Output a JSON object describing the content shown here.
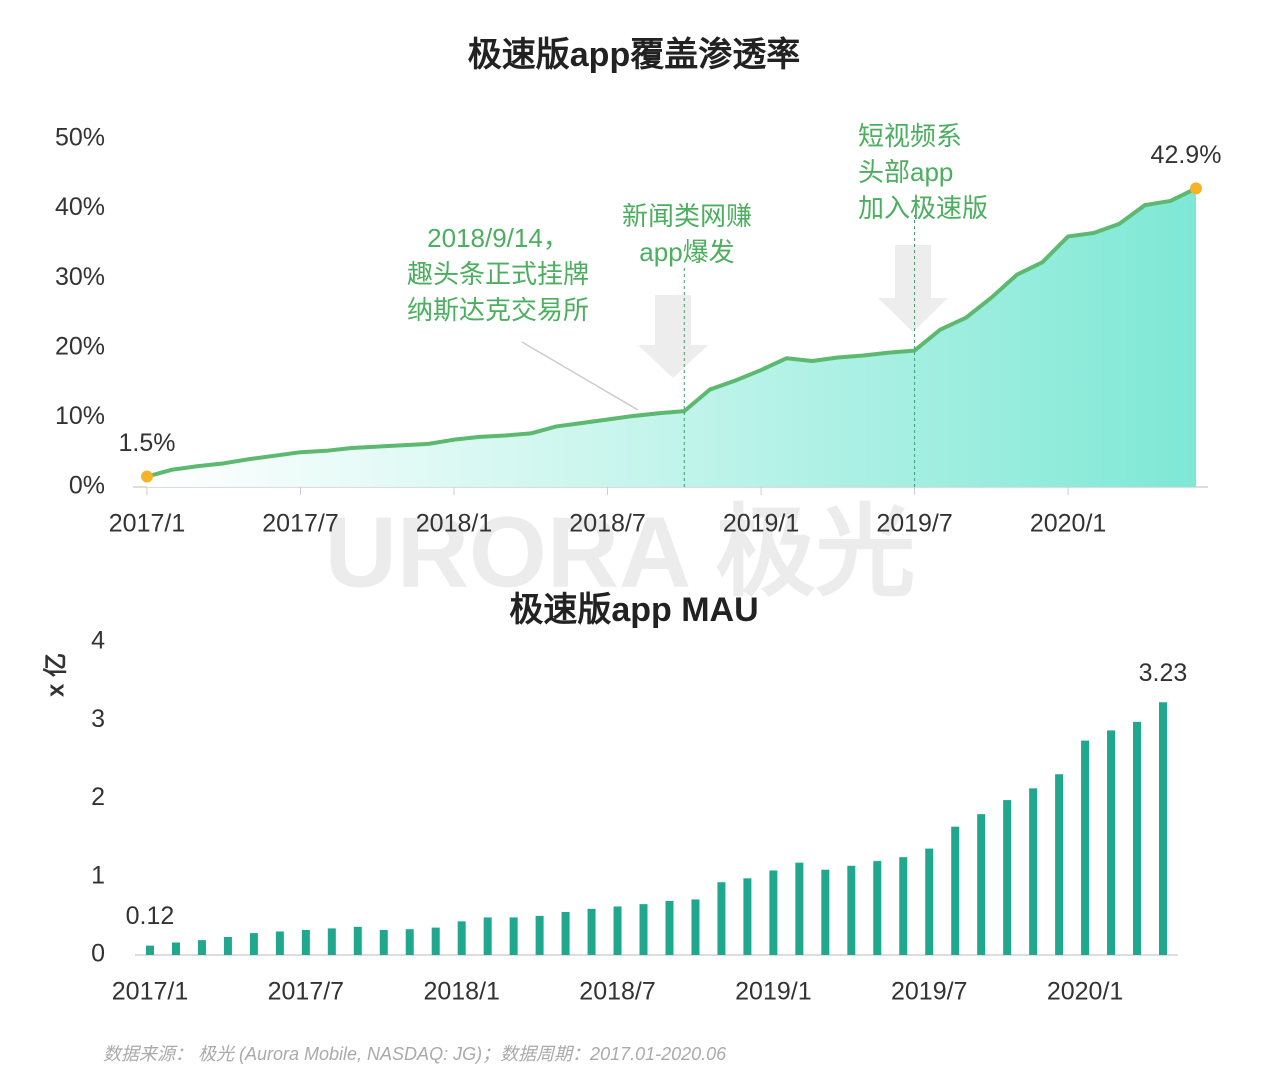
{
  "chart_data": [
    {
      "type": "area",
      "title": "极速版app覆盖渗透率",
      "categories": [
        "2017/1",
        null,
        null,
        null,
        null,
        null,
        "2017/7",
        null,
        null,
        null,
        null,
        null,
        "2018/1",
        null,
        null,
        null,
        null,
        null,
        "2018/7",
        null,
        null,
        null,
        null,
        null,
        "2019/1",
        null,
        null,
        null,
        null,
        null,
        "2019/7",
        null,
        null,
        null,
        null,
        null,
        "2020/1",
        null,
        null,
        null,
        null,
        null
      ],
      "values": [
        1.5,
        2.5,
        3.0,
        3.4,
        4.0,
        4.5,
        5.0,
        5.2,
        5.6,
        5.8,
        6.0,
        6.2,
        6.8,
        7.2,
        7.4,
        7.7,
        8.7,
        9.2,
        9.7,
        10.2,
        10.6,
        10.9,
        14.0,
        15.3,
        16.8,
        18.5,
        18.1,
        18.6,
        18.9,
        19.3,
        19.6,
        22.6,
        24.3,
        27.2,
        30.5,
        32.3,
        36.0,
        36.5,
        37.8,
        40.5,
        41.1,
        42.9
      ],
      "value_labels": [
        "1.5%",
        null,
        null,
        null,
        null,
        null,
        null,
        null,
        null,
        null,
        null,
        null,
        null,
        null,
        null,
        null,
        null,
        null,
        null,
        null,
        null,
        null,
        null,
        null,
        null,
        null,
        null,
        null,
        null,
        null,
        null,
        null,
        null,
        null,
        null,
        null,
        null,
        null,
        null,
        null,
        null,
        "42.9%"
      ],
      "color": "#5cb96f",
      "area_color": "#7ee8d5",
      "marker_color": "#f5b32a",
      "ylim": [
        0,
        50
      ],
      "yticks": [
        {
          "value": 0,
          "label": "0%"
        },
        {
          "value": 10,
          "label": "10%"
        },
        {
          "value": 20,
          "label": "20%"
        },
        {
          "value": 30,
          "label": "30%"
        },
        {
          "value": 40,
          "label": "40%"
        },
        {
          "value": 50,
          "label": "50%"
        }
      ],
      "annotations": [
        {
          "lines": [
            "2018/9/14，",
            "趣头条正式挂牌",
            "纳斯达克交易所"
          ]
        },
        {
          "lines": [
            "新闻类网赚",
            "app爆发"
          ]
        },
        {
          "lines": [
            "短视频系",
            "头部app",
            "加入极速版"
          ]
        }
      ]
    },
    {
      "type": "bar",
      "title": "极速版app MAU",
      "ylabel": "x 亿",
      "categories": [
        "2017/1",
        null,
        null,
        null,
        null,
        null,
        "2017/7",
        null,
        null,
        null,
        null,
        null,
        "2018/1",
        null,
        null,
        null,
        null,
        null,
        "2018/7",
        null,
        null,
        null,
        null,
        null,
        "2019/1",
        null,
        null,
        null,
        null,
        null,
        "2019/7",
        null,
        null,
        null,
        null,
        null,
        "2020/1",
        null,
        null,
        null
      ],
      "values": [
        0.12,
        0.16,
        0.19,
        0.23,
        0.28,
        0.3,
        0.32,
        0.34,
        0.36,
        0.32,
        0.33,
        0.35,
        0.43,
        0.48,
        0.48,
        0.5,
        0.55,
        0.59,
        0.62,
        0.65,
        0.69,
        0.71,
        0.93,
        0.98,
        1.08,
        1.18,
        1.09,
        1.14,
        1.2,
        1.25,
        1.36,
        1.64,
        1.8,
        1.98,
        2.13,
        2.31,
        2.74,
        2.87,
        2.98,
        3.23
      ],
      "value_labels": [
        "0.12",
        null,
        null,
        null,
        null,
        null,
        null,
        null,
        null,
        null,
        null,
        null,
        null,
        null,
        null,
        null,
        null,
        null,
        null,
        null,
        null,
        null,
        null,
        null,
        null,
        null,
        null,
        null,
        null,
        null,
        null,
        null,
        null,
        null,
        null,
        null,
        null,
        null,
        null,
        "3.23"
      ],
      "color": "#1fa88e",
      "ylim": [
        0,
        4
      ],
      "yticks": [
        0,
        1,
        2,
        3,
        4
      ]
    }
  ],
  "watermark": "URORA 极光",
  "source": "数据来源： 极光 (Aurora Mobile, NASDAQ: JG)；数据周期：2017.01-2020.06"
}
